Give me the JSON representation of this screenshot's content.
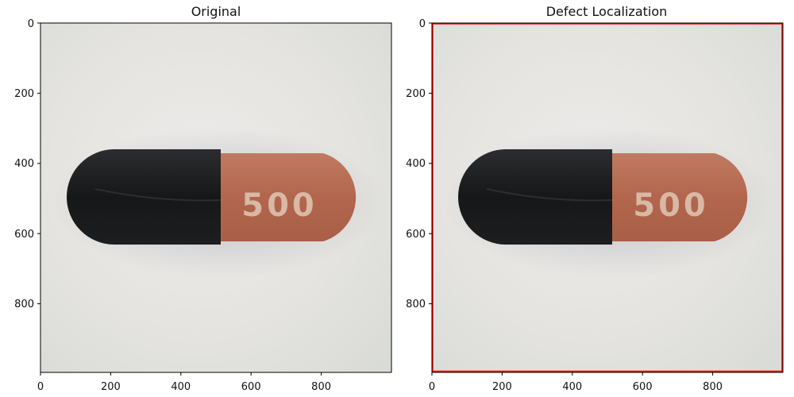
{
  "figure": {
    "panels": [
      {
        "title": "Original",
        "x_ticks": [
          "0",
          "200",
          "400",
          "600",
          "800"
        ],
        "y_ticks": [
          "0",
          "200",
          "400",
          "600",
          "800"
        ],
        "image": {
          "subject": "capsule pill, black cap and orange-brown body",
          "imprint": "500",
          "background": "light grey surface"
        }
      },
      {
        "title": "Defect Localization",
        "x_ticks": [
          "0",
          "200",
          "400",
          "600",
          "800"
        ],
        "y_ticks": [
          "0",
          "200",
          "400",
          "600",
          "800"
        ],
        "image": {
          "subject": "capsule pill, black cap and orange-brown body",
          "imprint": "500",
          "background": "light grey surface"
        },
        "overlay": {
          "border_color": "#ff0000",
          "description": "thin red outline along image border"
        }
      }
    ],
    "colors": {
      "cap": "#1f2022",
      "body": "#b56a52",
      "imprint": "#d9b8a6",
      "background": "#e6e5e1",
      "defect": "#ff0000"
    }
  }
}
